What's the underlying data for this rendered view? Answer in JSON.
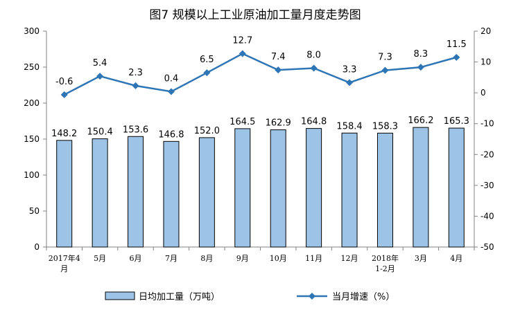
{
  "chart_data": {
    "type": "bar",
    "title": "图7  规模以上工业原油加工量月度走势图",
    "categories": [
      "2017年4月",
      "5月",
      "6月",
      "7月",
      "8月",
      "9月",
      "10月",
      "11月",
      "12月",
      "2018年1-2月",
      "3月",
      "4月"
    ],
    "category_lines": [
      [
        "2017年4",
        "月"
      ],
      [
        "5月"
      ],
      [
        "6月"
      ],
      [
        "7月"
      ],
      [
        "8月"
      ],
      [
        "9月"
      ],
      [
        "10月"
      ],
      [
        "11月"
      ],
      [
        "12月"
      ],
      [
        "2018年",
        "1-2月"
      ],
      [
        "3月"
      ],
      [
        "4月"
      ]
    ],
    "series": [
      {
        "name": "日均加工量（万吨）",
        "type": "bar",
        "axis": "left",
        "color": "#9dc3e6",
        "values": [
          148.2,
          150.4,
          153.6,
          146.8,
          152.0,
          164.5,
          162.9,
          164.8,
          158.4,
          158.3,
          166.2,
          165.3
        ],
        "labels": [
          "148.2",
          "150.4",
          "153.6",
          "146.8",
          "152.0",
          "164.5",
          "162.9",
          "164.8",
          "158.4",
          "158.3",
          "166.2",
          "165.3"
        ]
      },
      {
        "name": "当月增速（%）",
        "type": "line",
        "axis": "right",
        "color": "#2e75b6",
        "values": [
          -0.6,
          5.4,
          2.3,
          0.4,
          6.5,
          12.7,
          7.4,
          8.0,
          3.3,
          7.3,
          8.3,
          11.5
        ],
        "labels": [
          "-0.6",
          "5.4",
          "2.3",
          "0.4",
          "6.5",
          "12.7",
          "7.4",
          "8.0",
          "3.3",
          "7.3",
          "8.3",
          "11.5"
        ]
      }
    ],
    "y_left": {
      "min": 0,
      "max": 300,
      "ticks": [
        0,
        50,
        100,
        150,
        200,
        250,
        300
      ]
    },
    "y_right": {
      "min": -50,
      "max": 20,
      "ticks": [
        -50,
        -40,
        -30,
        -20,
        -10,
        0,
        10,
        20
      ]
    },
    "grid": false,
    "legend": "bottom"
  }
}
